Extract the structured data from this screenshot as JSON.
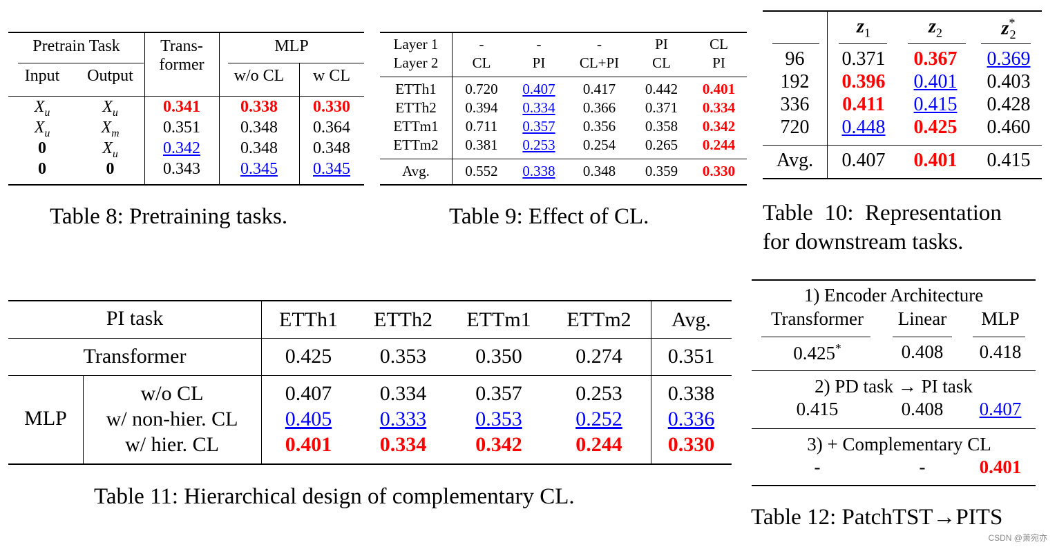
{
  "t8": {
    "caption": "Table 8: Pretraining tasks.",
    "h_pretrain": "Pretrain Task",
    "h_trans1": "Trans-",
    "h_trans2": "former",
    "h_mlp": "MLP",
    "h_input": "Input",
    "h_output": "Output",
    "h_wocl": "w/o CL",
    "h_wcl": "w CL",
    "rows": [
      {
        "input": "X",
        "input_sub": "u",
        "output": "X",
        "output_sub": "u",
        "v1": "0.341",
        "v2": "0.338",
        "v3": "0.330"
      },
      {
        "input": "X",
        "input_sub": "u",
        "output": "X",
        "output_sub": "m",
        "v1": "0.351",
        "v2": "0.348",
        "v3": "0.364"
      },
      {
        "input": "0",
        "input_sub": "",
        "output": "X",
        "output_sub": "u",
        "v1": "0.342",
        "v2": "0.348",
        "v3": "0.348"
      },
      {
        "input": "0",
        "input_sub": "",
        "output": "0",
        "output_sub": "",
        "v1": "0.343",
        "v2": "0.345",
        "v3": "0.345"
      }
    ]
  },
  "t9": {
    "caption": "Table 9: Effect of CL.",
    "layer1": "Layer 1",
    "layer2": "Layer 2",
    "cols": [
      {
        "l1": "-",
        "l2": "CL"
      },
      {
        "l1": "-",
        "l2": "PI"
      },
      {
        "l1": "-",
        "l2": "CL+PI"
      },
      {
        "l1": "PI",
        "l2": "CL"
      },
      {
        "l1": "CL",
        "l2": "PI"
      }
    ],
    "rows": [
      {
        "name": "ETTh1",
        "vals": [
          "0.720",
          "0.407",
          "0.417",
          "0.442",
          "0.401"
        ]
      },
      {
        "name": "ETTh2",
        "vals": [
          "0.394",
          "0.334",
          "0.366",
          "0.371",
          "0.334"
        ]
      },
      {
        "name": "ETTm1",
        "vals": [
          "0.711",
          "0.357",
          "0.356",
          "0.358",
          "0.342"
        ]
      },
      {
        "name": "ETTm2",
        "vals": [
          "0.381",
          "0.253",
          "0.254",
          "0.265",
          "0.244"
        ]
      }
    ],
    "avg": {
      "name": "Avg.",
      "vals": [
        "0.552",
        "0.338",
        "0.348",
        "0.359",
        "0.330"
      ]
    }
  },
  "t10": {
    "caption1": "Table  10:  Representation",
    "caption2": "for downstream tasks.",
    "h_z1": "z",
    "h_z1_sub": "1",
    "h_z2": "z",
    "h_z2_sub": "2",
    "h_z3": "z",
    "h_z3_sub": "2",
    "h_z3_sup": "*",
    "rows": [
      {
        "name": "96",
        "vals": [
          "0.371",
          "0.367",
          "0.369"
        ]
      },
      {
        "name": "192",
        "vals": [
          "0.396",
          "0.401",
          "0.403"
        ]
      },
      {
        "name": "336",
        "vals": [
          "0.411",
          "0.415",
          "0.428"
        ]
      },
      {
        "name": "720",
        "vals": [
          "0.448",
          "0.425",
          "0.460"
        ]
      }
    ],
    "avg": {
      "name": "Avg.",
      "vals": [
        "0.407",
        "0.401",
        "0.415"
      ]
    }
  },
  "t11": {
    "caption": "Table 11: Hierarchical design of complementary CL.",
    "h_pitask": "PI task",
    "cols": [
      "ETTh1",
      "ETTh2",
      "ETTm1",
      "ETTm2",
      "Avg."
    ],
    "transformer": {
      "name": "Transformer",
      "vals": [
        "0.425",
        "0.353",
        "0.350",
        "0.274",
        "0.351"
      ]
    },
    "mlp_label": "MLP",
    "mlp_rows": [
      {
        "name": "w/o CL",
        "vals": [
          "0.407",
          "0.334",
          "0.357",
          "0.253",
          "0.338"
        ]
      },
      {
        "name": "w/ non-hier. CL",
        "vals": [
          "0.405",
          "0.333",
          "0.353",
          "0.252",
          "0.336"
        ]
      },
      {
        "name": "w/ hier. CL",
        "vals": [
          "0.401",
          "0.334",
          "0.342",
          "0.244",
          "0.330"
        ]
      }
    ]
  },
  "t12": {
    "caption": "Table 12: PatchTST→PITS",
    "s1_title": "1) Encoder Architecture",
    "s1_cols": [
      "Transformer",
      "Linear",
      "MLP"
    ],
    "s1_vals": [
      "0.425",
      "0.408",
      "0.418"
    ],
    "s1_star": "*",
    "s2_title": "2) PD task → PI task",
    "s2_vals": [
      "0.415",
      "0.408",
      "0.407"
    ],
    "s3_title": "3) + Complementary CL",
    "s3_vals": [
      "-",
      "-",
      "0.401"
    ]
  },
  "watermark": "CSDN @萧宛亦"
}
